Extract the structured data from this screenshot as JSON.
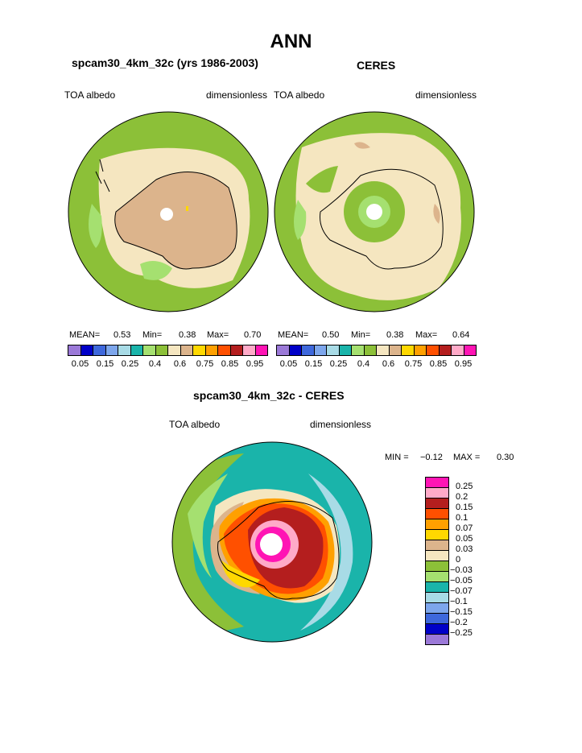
{
  "title": "ANN",
  "panels": [
    {
      "heading": "spcam30_4km_32c (yrs 1986-2003)",
      "variable": "TOA albedo",
      "units": "dimensionless",
      "stats": {
        "mean_label": "MEAN=",
        "mean": "0.53",
        "min_label": "Min=",
        "min": "0.38",
        "max_label": "Max=",
        "max": "0.70"
      }
    },
    {
      "heading": "CERES",
      "variable": "TOA albedo",
      "units": "dimensionless",
      "stats": {
        "mean_label": "MEAN=",
        "mean": "0.50",
        "min_label": "Min=",
        "min": "0.38",
        "max_label": "Max=",
        "max": "0.64"
      }
    }
  ],
  "abs_colorbar": {
    "ticks": [
      "0.05",
      "0.15",
      "0.25",
      "0.4",
      "0.6",
      "0.75",
      "0.85",
      "0.95"
    ],
    "colors": [
      "#9b79d8",
      "#0000c8",
      "#3e68dc",
      "#7da6ec",
      "#a8dbe6",
      "#1ab4aa",
      "#a5e070",
      "#8cc038",
      "#f5e6c0",
      "#dcb48c",
      "#ffd800",
      "#ffa000",
      "#ff5000",
      "#b41e1e",
      "#ffaac8",
      "#ff14b4"
    ]
  },
  "diff_panel": {
    "heading": "spcam30_4km_32c - CERES",
    "variable": "TOA albedo",
    "units": "dimensionless",
    "min_label": "MIN =",
    "min": "−0.12",
    "max_label": "MAX =",
    "max": "0.30"
  },
  "diff_colorbar": {
    "labels": [
      "0.25",
      "0.2",
      "0.15",
      "0.1",
      "0.07",
      "0.05",
      "0.03",
      "0",
      "−0.03",
      "−0.05",
      "−0.07",
      "−0.1",
      "−0.15",
      "−0.2",
      "−0.25"
    ],
    "colors_top_to_bottom": [
      "#ff14b4",
      "#ffaac8",
      "#b41e1e",
      "#ff5000",
      "#ffa000",
      "#ffd800",
      "#dcb48c",
      "#f5e6c0",
      "#8cc038",
      "#a5e070",
      "#1ab4aa",
      "#a8dbe6",
      "#7da6ec",
      "#3e68dc",
      "#0000c8",
      "#9b79d8"
    ]
  },
  "colors": {
    "ocean_model": "#8cc038",
    "ocean_ceres": "#8cc038",
    "light_tan": "#f5e6c0",
    "tan": "#dcb48c",
    "pole_hole": "#ffffff"
  }
}
